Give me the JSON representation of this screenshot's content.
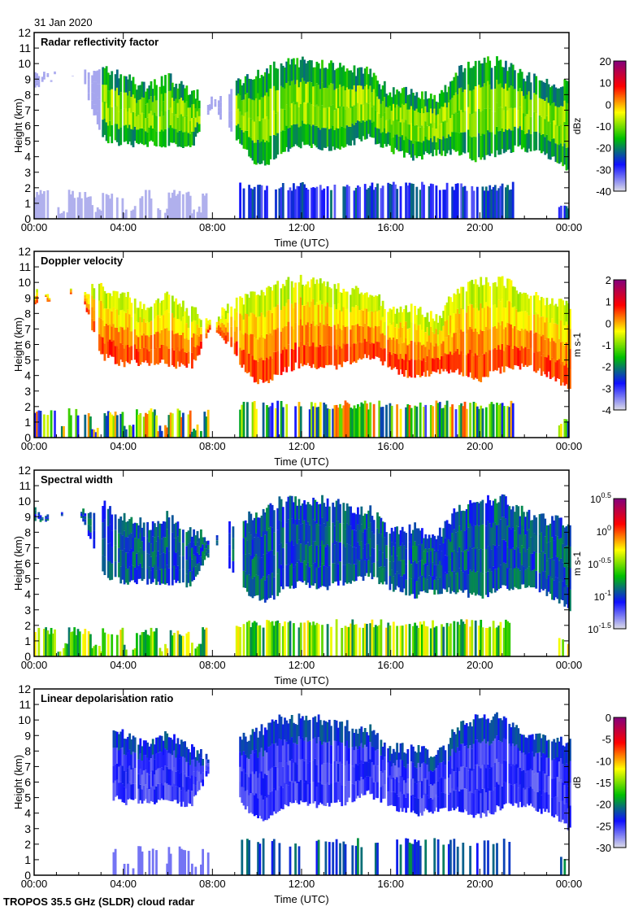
{
  "date": "31 Jan 2020",
  "footer": "TROPOS 35.5 GHz (SLDR) cloud radar",
  "chart_data": [
    {
      "type": "heatmap",
      "title": "Radar reflectivity factor",
      "xlabel": "Time (UTC)",
      "ylabel": "Height (km)",
      "xticks": [
        "00:00",
        "04:00",
        "08:00",
        "12:00",
        "16:00",
        "20:00",
        "00:00"
      ],
      "ylim": [
        0,
        12
      ],
      "yticks": [
        "0",
        "1",
        "2",
        "3",
        "4",
        "5",
        "6",
        "7",
        "8",
        "9",
        "10",
        "11",
        "12"
      ],
      "colorbar": {
        "label": "dBz",
        "range": [
          -40,
          20
        ],
        "ticks": [
          "20",
          "10",
          "0",
          "-10",
          "-20",
          "-30",
          "-40"
        ],
        "colors": [
          "#d8d8e8",
          "#1010ff",
          "#00c000",
          "#ffff00",
          "#ff0000",
          "#800080"
        ]
      }
    },
    {
      "type": "heatmap",
      "title": "Doppler velocity",
      "xlabel": "Time (UTC)",
      "ylabel": "Height (km)",
      "xticks": [
        "00:00",
        "04:00",
        "08:00",
        "12:00",
        "16:00",
        "20:00",
        "00:00"
      ],
      "ylim": [
        0,
        12
      ],
      "yticks": [
        "0",
        "1",
        "2",
        "3",
        "4",
        "5",
        "6",
        "7",
        "8",
        "9",
        "10",
        "11",
        "12"
      ],
      "colorbar": {
        "label": "m s-1",
        "range": [
          -4,
          2
        ],
        "ticks": [
          "2",
          "1",
          "0",
          "-1",
          "-2",
          "-3",
          "-4"
        ],
        "colors": [
          "#d8d8e8",
          "#1010ff",
          "#00c000",
          "#ffff00",
          "#ff0000",
          "#800080"
        ]
      }
    },
    {
      "type": "heatmap",
      "title": "Spectral width",
      "xlabel": "Time (UTC)",
      "ylabel": "Height (km)",
      "xticks": [
        "00:00",
        "04:00",
        "08:00",
        "12:00",
        "16:00",
        "20:00",
        "00:00"
      ],
      "ylim": [
        0,
        12
      ],
      "yticks": [
        "0",
        "1",
        "2",
        "3",
        "4",
        "5",
        "6",
        "7",
        "8",
        "9",
        "10",
        "11",
        "12"
      ],
      "colorbar": {
        "label": "m s-1",
        "scale": "log",
        "range": [
          -1.5,
          0.5
        ],
        "ticks": [
          "10^0.5",
          "10^0",
          "10^-0.5",
          "10^-1",
          "10^-1.5"
        ],
        "colors": [
          "#d8d8e8",
          "#1010ff",
          "#00c000",
          "#ffff00",
          "#ff0000",
          "#800080"
        ]
      }
    },
    {
      "type": "heatmap",
      "title": "Linear depolarisation ratio",
      "xlabel": "Time (UTC)",
      "ylabel": "Height (km)",
      "xticks": [
        "00:00",
        "04:00",
        "08:00",
        "12:00",
        "16:00",
        "20:00",
        "00:00"
      ],
      "ylim": [
        0,
        12
      ],
      "yticks": [
        "0",
        "1",
        "2",
        "3",
        "4",
        "5",
        "6",
        "7",
        "8",
        "9",
        "10",
        "11",
        "12"
      ],
      "colorbar": {
        "label": "dB",
        "range": [
          -30,
          0
        ],
        "ticks": [
          "0",
          "-5",
          "-10",
          "-15",
          "-20",
          "-25",
          "-30"
        ],
        "colors": [
          "#d8d8e8",
          "#1010ff",
          "#00c000",
          "#ffff00",
          "#ff0000",
          "#800080"
        ]
      }
    }
  ]
}
